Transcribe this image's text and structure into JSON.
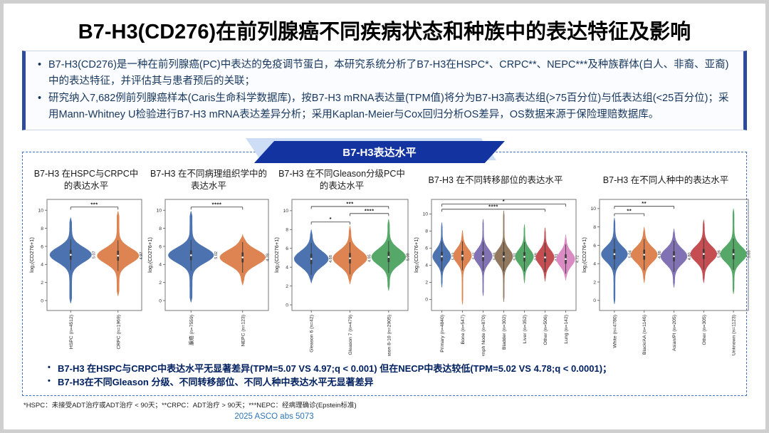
{
  "title": "B7-H3(CD276)在前列腺癌不同疾病状态和种族中的表达特征及影响",
  "intro": {
    "bullets": [
      "B7-H3(CD276)是一种在前列腺癌(PC)中表达的免疫调节蛋白，本研究系统分析了B7-H3在HSPC*、CRPC**、NEPC***及种族群体(白人、非裔、亚裔)中的表达特征，并评估其与患者预后的关联；",
      "研究纳入7,682例前列腺癌样本(Caris生命科学数据库)，按B7-H3 mRNA表达量(TPM值)将分为B7-H3高表达组(>75百分位)与低表达组(<25百分位)；采用Mann-Whitney U检验进行B7-H3 mRNA表达差异分析；采用Kaplan-Meier与Cox回归分析OS差异，OS数据来源于保险理赔数据库。"
    ]
  },
  "section_banner": "B7-H3表达水平",
  "chart_data": [
    {
      "type": "violin",
      "title": "B7-H3 在HSPC与CRPC中的表达水平",
      "ylabel": "log₂(CD276+1)",
      "ylim": [
        -1.1,
        11.2
      ],
      "yticks": [
        0,
        2,
        4,
        6,
        8,
        10
      ],
      "categories": [
        "HSPC (n=4512)",
        "CRPC (n=1969)"
      ],
      "medians": [
        5.07,
        4.97
      ],
      "mins": [
        -0.3,
        0.5
      ],
      "maxs": [
        9.2,
        9.9
      ],
      "colors": [
        "#4C72B0",
        "#DD8452"
      ],
      "significance": [
        {
          "from": 0,
          "to": 1,
          "y": 10.35,
          "label": "***"
        }
      ]
    },
    {
      "type": "violin",
      "title": "B7-H3 在不同病理组织学中的表达水平",
      "ylabel": "log₂(CD276+1)",
      "ylim": [
        -1.1,
        11.2
      ],
      "yticks": [
        0,
        2,
        4,
        6,
        8,
        10
      ],
      "categories": [
        "腺癌 (n=7559)",
        "NEPC (n=123)"
      ],
      "medians": [
        5.02,
        4.78
      ],
      "mins": [
        -0.2,
        1.7
      ],
      "maxs": [
        9.9,
        7.3
      ],
      "colors": [
        "#4C72B0",
        "#DD8452"
      ],
      "significance": [
        {
          "from": 0,
          "to": 1,
          "y": 10.35,
          "label": "****"
        }
      ]
    },
    {
      "type": "violin",
      "title": "B7-H3 在不同Gleason分级PC中的表达水平",
      "ylabel": "log₂(CD276+1)",
      "ylim": [
        -0.6,
        11.2
      ],
      "yticks": [
        0,
        2,
        4,
        6,
        8,
        10
      ],
      "categories": [
        "Gleason 6 (n=42)",
        "Gleason 7 (n=479)",
        "Gleason 8-10 (n=2905)"
      ],
      "medians": [
        4.88,
        4.95,
        5.09
      ],
      "mins": [
        2.3,
        2.2,
        1.5
      ],
      "maxs": [
        8.0,
        8.4,
        9.1
      ],
      "colors": [
        "#4C72B0",
        "#DD8452",
        "#55A868"
      ],
      "significance": [
        {
          "from": 0,
          "to": 1,
          "y": 8.8,
          "label": "*"
        },
        {
          "from": 1,
          "to": 2,
          "y": 9.7,
          "label": "****"
        },
        {
          "from": 0,
          "to": 2,
          "y": 10.45,
          "label": "***"
        }
      ]
    },
    {
      "type": "violin",
      "title": "B7-H3 在不同转移部位的表达水平",
      "ylabel": "log₂(CD276+1)",
      "ylim": [
        -1.3,
        11.7
      ],
      "yticks": [
        0,
        2,
        4,
        6,
        8,
        10
      ],
      "categories": [
        "Primary (n=4840)",
        "Bone (n=547)",
        "Lymph Node (n=870)",
        "Bladder (n=302)",
        "Liver (n=352)",
        "Other (n=506)",
        "Lung (n=142)"
      ],
      "medians": [
        5.03,
        5.11,
        5.05,
        5.01,
        4.99,
        4.91,
        4.72
      ],
      "mins": [
        1.4,
        -0.6,
        0.4,
        -0.3,
        1.9,
        2.1,
        2.2
      ],
      "maxs": [
        9.0,
        8.1,
        9.4,
        10.4,
        8.8,
        8.4,
        7.6
      ],
      "colors": [
        "#4C72B0",
        "#DD8452",
        "#8172B3",
        "#937860",
        "#55A868",
        "#C44E52",
        "#DA8BC3"
      ],
      "significance": [
        {
          "from": 0,
          "to": 5,
          "y": 10.55,
          "label": "****"
        },
        {
          "from": 0,
          "to": 6,
          "y": 11.15,
          "label": "*"
        }
      ]
    },
    {
      "type": "violin",
      "title": "B7-H3 在不同人种中的表达水平",
      "ylabel": "log₂(CD276+1)",
      "ylim": [
        -1.1,
        11.0
      ],
      "yticks": [
        0,
        2,
        4,
        6,
        8,
        10
      ],
      "categories": [
        "White (n=4780)",
        "Black/AA (n=1146)",
        "Asian/PI (n=205)",
        "Other (n=305)",
        "Unknown (n=1123)"
      ],
      "medians": [
        5.04,
        4.98,
        4.8,
        5.06,
        5.03
      ],
      "mins": [
        -0.4,
        1.9,
        1.4,
        1.9,
        0.7
      ],
      "maxs": [
        9.0,
        8.0,
        7.8,
        8.8,
        10.0
      ],
      "colors": [
        "#4C72B0",
        "#DD8452",
        "#8172B3",
        "#C44E52",
        "#55A868"
      ],
      "significance": [
        {
          "from": 0,
          "to": 1,
          "y": 9.45,
          "label": "**"
        },
        {
          "from": 0,
          "to": 2,
          "y": 10.25,
          "label": "**"
        }
      ]
    }
  ],
  "summary": {
    "bullets": [
      "B7-H3 在HSPC与CRPC中表达水平无显著差异(TPM=5.07 VS  4.97;q < 0.001)  但在NECP中表达较低(TPM=5.02 VS 4.78;q < 0.0001)；",
      "B7-H3在不同Gleason 分级、不同转移部位、不同人种中表达水平无显著差异"
    ]
  },
  "footnote": "*HSPC：未接受ADT治疗或ADT治疗 < 90天；**CRPC：ADT治疗 > 90天；***NEPC：经病理确诊(Epstein标准)",
  "citation": "2025 ASCO abs 5073",
  "colors": {
    "banner": "#1333a0",
    "banner_light": "#cdddf5",
    "box_border": "#2e4b9b",
    "navy_text": "#17375e",
    "summary_text": "#002060",
    "dashed_border": "#4472c4",
    "citation_blue": "#2e74b5"
  }
}
